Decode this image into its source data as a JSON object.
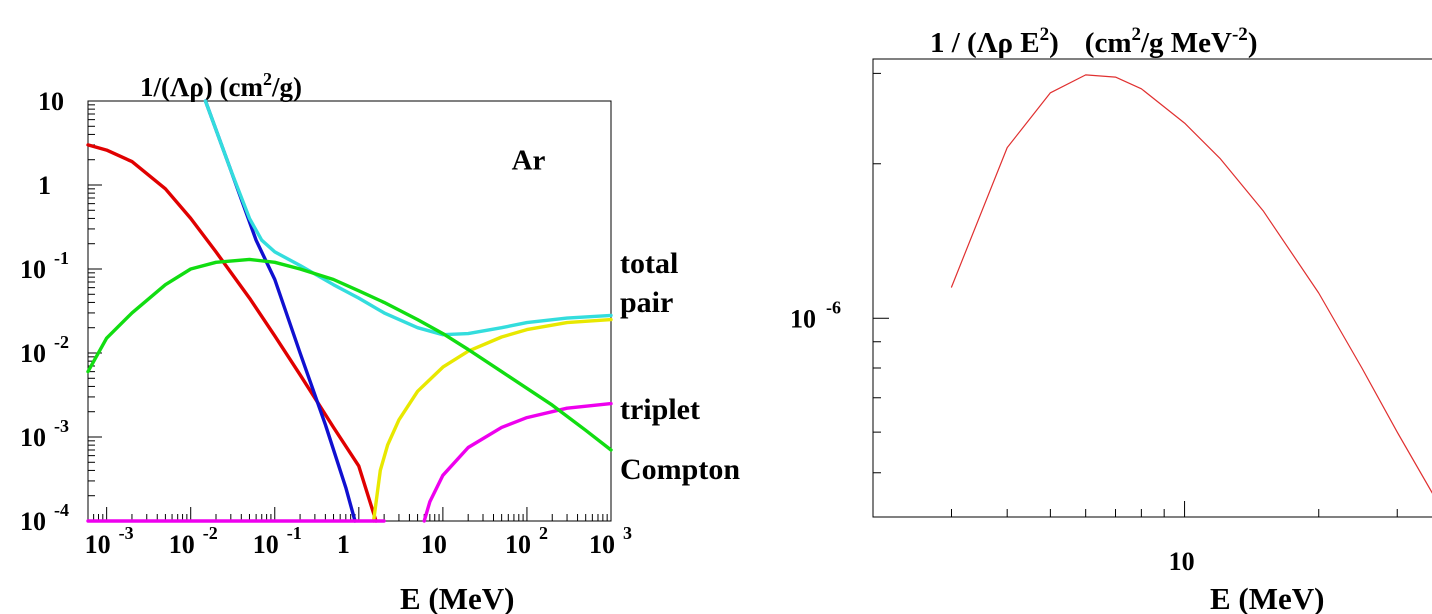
{
  "chart_data": [
    {
      "type": "line",
      "title": "1/(Λρ) (cm²/g)",
      "title_parts": {
        "base": "1/(Λρ) (cm",
        "sup": "2",
        "tail": "/g)"
      },
      "xlabel": "E (MeV)",
      "ylabel": "",
      "x_scale": "log",
      "y_scale": "log",
      "xlim": [
        0.0006,
        1000
      ],
      "ylim": [
        0.0001,
        10
      ],
      "x_ticks": [
        {
          "value": 0.001,
          "label": "10",
          "sup": "-3"
        },
        {
          "value": 0.01,
          "label": "10",
          "sup": "-2"
        },
        {
          "value": 0.1,
          "label": "10",
          "sup": "-1"
        },
        {
          "value": 1,
          "label": "1",
          "sup": ""
        },
        {
          "value": 10,
          "label": "10",
          "sup": ""
        },
        {
          "value": 100,
          "label": "10",
          "sup": "2"
        },
        {
          "value": 1000,
          "label": "10",
          "sup": "3"
        }
      ],
      "y_ticks": [
        {
          "value": 10,
          "label": "10",
          "sup": ""
        },
        {
          "value": 1,
          "label": "1",
          "sup": ""
        },
        {
          "value": 0.1,
          "label": "10",
          "sup": "-1"
        },
        {
          "value": 0.01,
          "label": "10",
          "sup": "-2"
        },
        {
          "value": 0.001,
          "label": "10",
          "sup": "-3"
        },
        {
          "value": 0.0001,
          "label": "10",
          "sup": "-4"
        }
      ],
      "annotations": [
        {
          "text": "Ar",
          "x": 120,
          "y": 2.0
        }
      ],
      "grid": false,
      "series": [
        {
          "name": "",
          "color": "#e00000",
          "x": [
            0.0006,
            0.001,
            0.002,
            0.005,
            0.01,
            0.02,
            0.05,
            0.1,
            0.2,
            0.5,
            1,
            1.6
          ],
          "y": [
            3.0,
            2.6,
            1.9,
            0.9,
            0.4,
            0.16,
            0.045,
            0.016,
            0.0055,
            0.0013,
            0.00045,
            0.0001
          ]
        },
        {
          "name": "",
          "color": "#1010d0",
          "x": [
            0.015,
            0.03,
            0.06,
            0.1,
            0.2,
            0.4,
            0.7,
            0.9
          ],
          "y": [
            10,
            1.5,
            0.22,
            0.075,
            0.01,
            0.0014,
            0.00025,
            0.0001
          ]
        },
        {
          "name": "total",
          "color": "#33dddd",
          "x": [
            0.015,
            0.03,
            0.05,
            0.07,
            0.1,
            0.2,
            0.5,
            1,
            2,
            5,
            10,
            20,
            50,
            100,
            300,
            1000
          ],
          "y": [
            10,
            1.5,
            0.4,
            0.22,
            0.16,
            0.11,
            0.065,
            0.045,
            0.03,
            0.02,
            0.0165,
            0.017,
            0.02,
            0.023,
            0.026,
            0.028
          ]
        },
        {
          "name": "pair",
          "color": "#e8e800",
          "x": [
            1.5,
            1.8,
            2.2,
            3,
            5,
            10,
            20,
            50,
            100,
            300,
            1000
          ],
          "y": [
            0.0001,
            0.0004,
            0.0008,
            0.0016,
            0.0035,
            0.0068,
            0.0105,
            0.0155,
            0.019,
            0.023,
            0.025
          ]
        },
        {
          "name": "triplet",
          "color": "#ee00ee",
          "x": [
            6,
            7,
            10,
            20,
            50,
            100,
            300,
            1000
          ],
          "y": [
            0.0001,
            0.00017,
            0.00035,
            0.00075,
            0.0013,
            0.0017,
            0.0022,
            0.0025
          ]
        },
        {
          "name": "Compton",
          "color": "#11dd11",
          "x": [
            0.0006,
            0.001,
            0.002,
            0.005,
            0.01,
            0.02,
            0.05,
            0.1,
            0.2,
            0.5,
            1,
            2,
            5,
            10,
            20,
            50,
            100,
            200,
            500,
            1000
          ],
          "y": [
            0.006,
            0.015,
            0.03,
            0.065,
            0.1,
            0.12,
            0.13,
            0.12,
            0.1,
            0.075,
            0.055,
            0.04,
            0.025,
            0.017,
            0.011,
            0.006,
            0.0038,
            0.0024,
            0.0012,
            0.0007
          ]
        },
        {
          "name": "",
          "color": "#ee00ee",
          "x": [
            0.0006,
            2.0
          ],
          "y": [
            0.0001,
            0.0001
          ]
        }
      ],
      "legend": [
        {
          "text": "total",
          "color": "#33dddd"
        },
        {
          "text": "pair",
          "color": "#e8e800"
        },
        {
          "text": "triplet",
          "color": "#ee00ee"
        },
        {
          "text": "Compton",
          "color": "#11dd11"
        }
      ]
    },
    {
      "type": "line",
      "title": "1 / (Λρ E²) (cm²/g MeV⁻²)",
      "title_parts": {
        "a": "1 / (Λρ E",
        "a_sup": "2",
        "b": ")",
        "c": "(cm",
        "c_sup": "2",
        "d": "/g MeV",
        "d_sup": "-2",
        "e": ")"
      },
      "xlabel": "E (MeV)",
      "ylabel": "",
      "x_scale": "log",
      "y_scale": "log",
      "xlim": [
        2,
        38
      ],
      "ylim": [
        4.1e-07,
        3.2e-06
      ],
      "x_ticks": [
        {
          "value": 10,
          "label": "10",
          "sup": ""
        }
      ],
      "y_ticks": [
        {
          "value": 1e-06,
          "label": "10",
          "sup": "-6"
        }
      ],
      "grid": false,
      "series": [
        {
          "name": "",
          "color": "#e03030",
          "x": [
            3,
            4,
            5,
            6,
            7,
            8,
            10,
            12,
            15,
            20,
            25,
            30,
            38
          ],
          "y": [
            1.15e-06,
            2.15e-06,
            2.75e-06,
            2.98e-06,
            2.95e-06,
            2.8e-06,
            2.4e-06,
            2.05e-06,
            1.62e-06,
            1.12e-06,
            8e-07,
            6e-07,
            4.2e-07
          ]
        }
      ],
      "legend": []
    }
  ]
}
